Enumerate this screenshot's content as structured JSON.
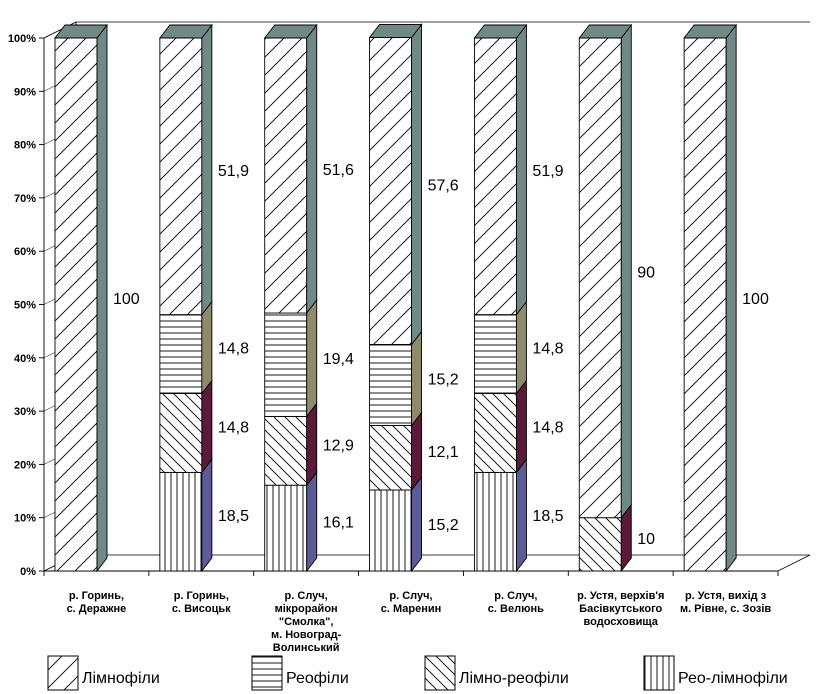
{
  "chart_data": {
    "type": "bar",
    "stacked": true,
    "percent_stacked": true,
    "three_d": true,
    "ylim": [
      0,
      100
    ],
    "yticks": [
      "0%",
      "10%",
      "20%",
      "30%",
      "40%",
      "50%",
      "60%",
      "70%",
      "80%",
      "90%",
      "100%"
    ],
    "categories": [
      [
        "р. Горинь,",
        "с. Деражне"
      ],
      [
        "р. Горинь,",
        "с. Висоцьк"
      ],
      [
        "р. Случ,",
        "мікрорайон",
        "\"Смолка\",",
        "м. Новоград-",
        "Волинський"
      ],
      [
        "р. Случ,",
        "с. Маренин"
      ],
      [
        "р. Случ,",
        "с. Велюнь"
      ],
      [
        "р. Устя, верхів'я",
        "Басівкутського",
        "водосховища"
      ],
      [
        "р. Устя, вихід з",
        "м. Рівне, с. Зозів"
      ]
    ],
    "series": [
      {
        "name": "Рео-лімнофіли",
        "pattern": "vertical",
        "side_color": "#5b5b9a",
        "values": [
          0,
          18.5,
          16.1,
          15.2,
          18.5,
          0,
          0
        ],
        "labels": [
          "",
          "18,5",
          "16,1",
          "15,2",
          "18,5",
          "",
          ""
        ]
      },
      {
        "name": "Лімно-реофіли",
        "pattern": "backslash",
        "side_color": "#5a1a38",
        "values": [
          0,
          14.8,
          12.9,
          12.1,
          14.8,
          10,
          0
        ],
        "labels": [
          "",
          "14,8",
          "12,9",
          "12,1",
          "14,8",
          "10",
          ""
        ]
      },
      {
        "name": "Реофіли",
        "pattern": "horizontal",
        "side_color": "#8e8a6a",
        "values": [
          0,
          14.8,
          19.4,
          15.2,
          14.8,
          0,
          0
        ],
        "labels": [
          "",
          "14,8",
          "19,4",
          "15,2",
          "14,8",
          "",
          ""
        ]
      },
      {
        "name": "Лімнофіли",
        "pattern": "slash",
        "side_color": "#6f8a86",
        "values": [
          100,
          51.9,
          51.6,
          57.6,
          51.9,
          90,
          100
        ],
        "labels": [
          "100",
          "51,9",
          "51,6",
          "57,6",
          "51,9",
          "90",
          "100"
        ]
      }
    ],
    "legend_order": [
      "Лімнофіли",
      "Реофіли",
      "Лімно-реофіли",
      "Рео-лімнофіли"
    ],
    "legend_position": "bottom",
    "grid": false
  }
}
